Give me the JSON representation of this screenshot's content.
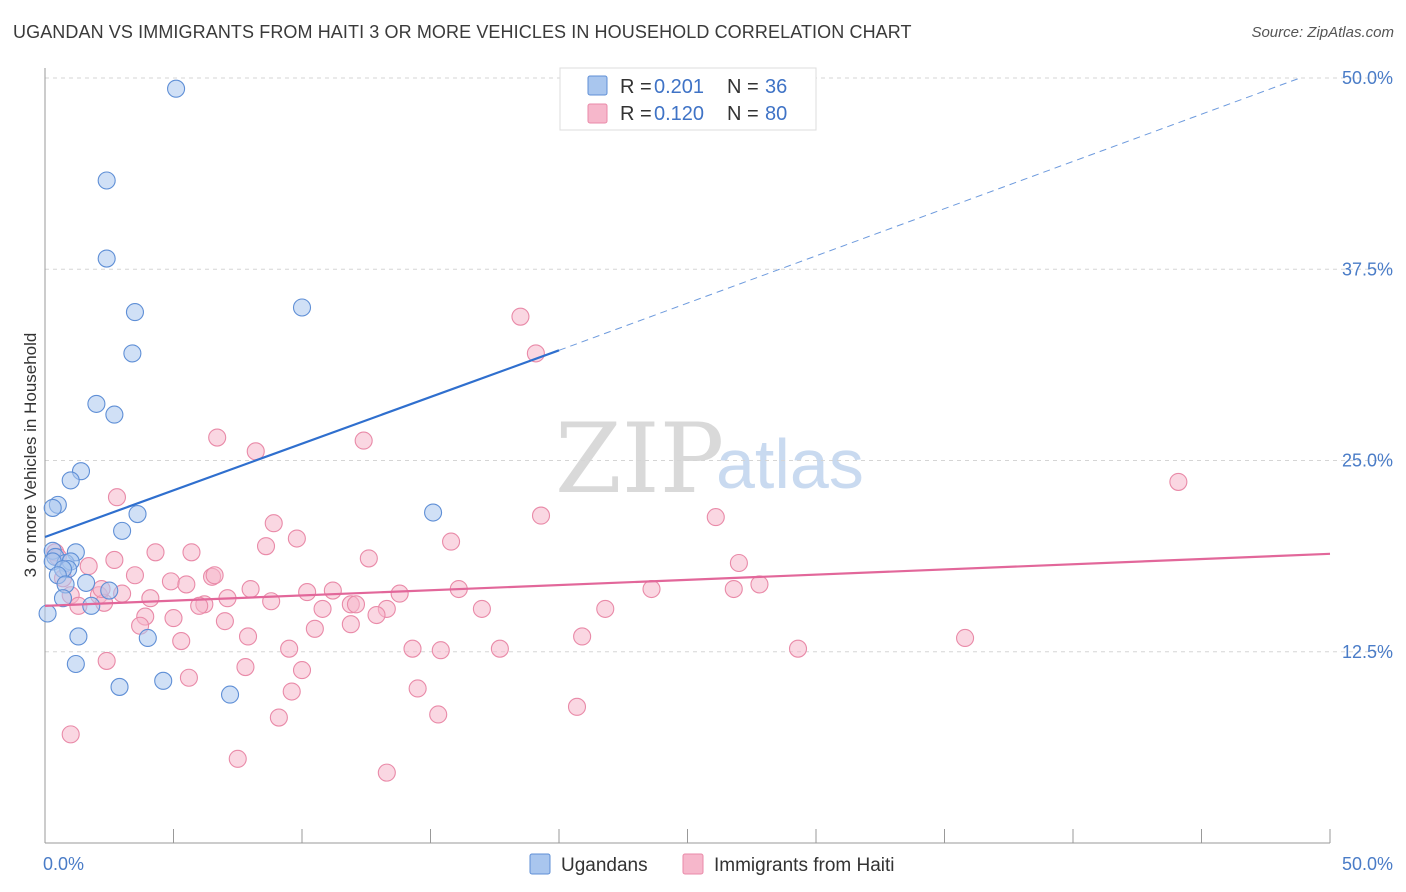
{
  "title": "UGANDAN VS IMMIGRANTS FROM HAITI 3 OR MORE VEHICLES IN HOUSEHOLD CORRELATION CHART",
  "source": "Source: ZipAtlas.com",
  "watermark": {
    "zip": "ZIP",
    "atlas": "atlas"
  },
  "colors": {
    "ugandans_fill": "#a9c6ee",
    "ugandans_stroke": "#5f8fd6",
    "ugandans_line": "#2f6fce",
    "haiti_fill": "#f6b7cb",
    "haiti_stroke": "#e98aa8",
    "haiti_line": "#e2679a",
    "grid": "#d5d5d5",
    "tick_label": "#4a7cc7"
  },
  "legend": {
    "rows": [
      {
        "r_label": "R =",
        "r_value": "0.201",
        "n_label": "N =",
        "n_value": "36"
      },
      {
        "r_label": "R =",
        "r_value": "0.120",
        "n_label": "N =",
        "n_value": "80"
      }
    ]
  },
  "chart_data": {
    "type": "scatter",
    "title": "UGANDAN VS IMMIGRANTS FROM HAITI 3 OR MORE VEHICLES IN HOUSEHOLD CORRELATION CHART",
    "xlabel": "",
    "ylabel": "3 or more Vehicles in Household",
    "xlim": [
      0,
      50
    ],
    "ylim": [
      0,
      50
    ],
    "x_tick_labels": [
      "0.0%",
      "50.0%"
    ],
    "y_ticks": [
      12.5,
      25.0,
      37.5,
      50.0
    ],
    "y_tick_labels": [
      "12.5%",
      "25.0%",
      "37.5%",
      "50.0%"
    ],
    "grid": true,
    "legend_placement": "top-center",
    "series": [
      {
        "name": "Ugandans",
        "r": 0.201,
        "n": 36,
        "trend": {
          "x0": 0,
          "y0": 20.0,
          "x1": 20,
          "y1": 32.2,
          "dashed_to_x": 50,
          "dashed_to_y": 50.0
        },
        "points": [
          [
            5.1,
            49.3
          ],
          [
            2.4,
            43.3
          ],
          [
            2.4,
            38.2
          ],
          [
            3.5,
            34.7
          ],
          [
            10.0,
            35.0
          ],
          [
            3.4,
            32.0
          ],
          [
            2.0,
            28.7
          ],
          [
            2.7,
            28.0
          ],
          [
            1.4,
            24.3
          ],
          [
            1.0,
            23.7
          ],
          [
            0.5,
            22.1
          ],
          [
            0.3,
            21.9
          ],
          [
            3.6,
            21.5
          ],
          [
            15.1,
            21.6
          ],
          [
            3.0,
            20.4
          ],
          [
            0.3,
            19.1
          ],
          [
            0.4,
            18.7
          ],
          [
            1.2,
            19.0
          ],
          [
            0.8,
            18.3
          ],
          [
            1.0,
            18.4
          ],
          [
            0.3,
            18.4
          ],
          [
            0.9,
            17.9
          ],
          [
            0.7,
            17.9
          ],
          [
            0.5,
            17.5
          ],
          [
            1.6,
            17.0
          ],
          [
            0.8,
            16.9
          ],
          [
            2.5,
            16.5
          ],
          [
            0.7,
            16.0
          ],
          [
            1.8,
            15.5
          ],
          [
            0.1,
            15.0
          ],
          [
            1.3,
            13.5
          ],
          [
            4.0,
            13.4
          ],
          [
            1.2,
            11.7
          ],
          [
            2.9,
            10.2
          ],
          [
            4.6,
            10.6
          ],
          [
            7.2,
            9.7
          ]
        ]
      },
      {
        "name": "Immigrants from Haiti",
        "r": 0.12,
        "n": 80,
        "trend": {
          "x0": 0,
          "y0": 15.5,
          "x1": 50,
          "y1": 18.9
        },
        "points": [
          [
            18.5,
            34.4
          ],
          [
            19.1,
            32.0
          ],
          [
            6.7,
            26.5
          ],
          [
            12.4,
            26.3
          ],
          [
            8.2,
            25.6
          ],
          [
            44.1,
            23.6
          ],
          [
            2.8,
            22.6
          ],
          [
            19.3,
            21.4
          ],
          [
            26.1,
            21.3
          ],
          [
            8.9,
            20.9
          ],
          [
            9.8,
            19.9
          ],
          [
            15.8,
            19.7
          ],
          [
            8.6,
            19.4
          ],
          [
            4.3,
            19.0
          ],
          [
            5.7,
            19.0
          ],
          [
            0.4,
            19.0
          ],
          [
            0.5,
            18.7
          ],
          [
            12.6,
            18.6
          ],
          [
            2.7,
            18.5
          ],
          [
            27.0,
            18.3
          ],
          [
            1.7,
            18.1
          ],
          [
            3.5,
            17.5
          ],
          [
            6.5,
            17.4
          ],
          [
            0.7,
            17.3
          ],
          [
            4.9,
            17.1
          ],
          [
            5.5,
            16.9
          ],
          [
            27.8,
            16.9
          ],
          [
            16.1,
            16.6
          ],
          [
            23.6,
            16.6
          ],
          [
            26.8,
            16.6
          ],
          [
            8.0,
            16.6
          ],
          [
            10.2,
            16.4
          ],
          [
            11.2,
            16.5
          ],
          [
            3.0,
            16.3
          ],
          [
            13.8,
            16.3
          ],
          [
            1.0,
            16.2
          ],
          [
            2.1,
            16.2
          ],
          [
            7.1,
            16.0
          ],
          [
            4.1,
            16.0
          ],
          [
            8.8,
            15.8
          ],
          [
            2.3,
            15.7
          ],
          [
            6.2,
            15.6
          ],
          [
            11.9,
            15.6
          ],
          [
            6.0,
            15.5
          ],
          [
            1.3,
            15.5
          ],
          [
            12.1,
            15.6
          ],
          [
            10.8,
            15.3
          ],
          [
            13.3,
            15.3
          ],
          [
            17.0,
            15.3
          ],
          [
            21.8,
            15.3
          ],
          [
            3.9,
            14.8
          ],
          [
            5.0,
            14.7
          ],
          [
            12.9,
            14.9
          ],
          [
            7.0,
            14.5
          ],
          [
            11.9,
            14.3
          ],
          [
            10.5,
            14.0
          ],
          [
            3.7,
            14.2
          ],
          [
            20.9,
            13.5
          ],
          [
            7.9,
            13.5
          ],
          [
            35.8,
            13.4
          ],
          [
            5.3,
            13.2
          ],
          [
            9.5,
            12.7
          ],
          [
            14.3,
            12.7
          ],
          [
            17.7,
            12.7
          ],
          [
            29.3,
            12.7
          ],
          [
            2.4,
            11.9
          ],
          [
            7.8,
            11.5
          ],
          [
            10.0,
            11.3
          ],
          [
            5.6,
            10.8
          ],
          [
            14.5,
            10.1
          ],
          [
            9.6,
            9.9
          ],
          [
            20.7,
            8.9
          ],
          [
            15.3,
            8.4
          ],
          [
            9.1,
            8.2
          ],
          [
            1.0,
            7.1
          ],
          [
            7.5,
            5.5
          ],
          [
            13.3,
            4.6
          ],
          [
            6.6,
            17.5
          ],
          [
            15.4,
            12.6
          ],
          [
            2.2,
            16.6
          ]
        ]
      }
    ]
  },
  "bottom_legend": [
    "Ugandans",
    "Immigrants from Haiti"
  ]
}
